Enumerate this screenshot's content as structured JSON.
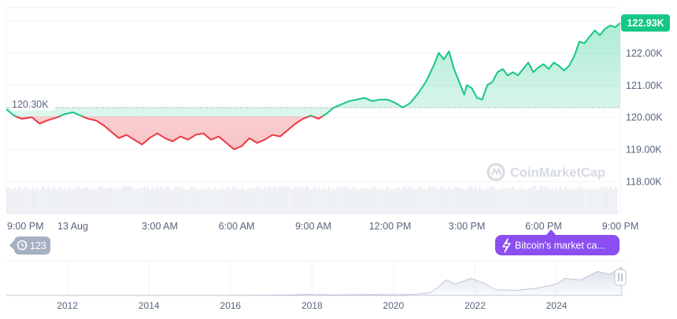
{
  "chart_data": {
    "type": "area",
    "baseline_label": "120.30K",
    "last_value_label": "122.93K",
    "y_axis": {
      "unit_suffix": "K",
      "tick_values": [
        118,
        119,
        120,
        121,
        122
      ],
      "tick_labels": [
        "118.00K",
        "119.00K",
        "120.00K",
        "121.00K",
        "122.00K"
      ],
      "range": [
        117.0,
        123.4
      ]
    },
    "x_axis": {
      "tick_labels": [
        "9:00 PM",
        "13 Aug",
        "3:00 AM",
        "6:00 AM",
        "9:00 AM",
        "12:00 PM",
        "3:00 PM",
        "6:00 PM",
        "9:00 PM"
      ],
      "tick_hours": [
        0,
        2.6,
        6,
        9,
        12,
        15,
        18,
        21,
        24
      ]
    },
    "baseline": 120.3,
    "series": [
      {
        "x_hours": [
          0,
          0.3,
          0.6,
          1.0,
          1.3,
          1.6,
          2.0,
          2.3,
          2.6,
          2.9,
          3.2,
          3.5,
          3.8,
          4.1,
          4.4,
          4.7,
          5.0,
          5.3,
          5.6,
          5.9,
          6.2,
          6.5,
          6.8,
          7.1,
          7.4,
          7.7,
          8.0,
          8.3,
          8.6,
          8.9,
          9.2,
          9.5,
          9.8,
          10.1,
          10.4,
          10.7,
          11.0,
          11.3,
          11.6,
          11.9,
          12.2,
          12.5,
          12.8,
          13.1,
          13.4,
          13.7,
          14.0,
          14.3,
          14.6,
          14.9,
          15.2,
          15.5,
          15.8,
          16.1,
          16.4,
          16.7,
          16.9,
          17.1,
          17.3,
          17.5,
          17.7,
          17.9,
          18.0,
          18.2,
          18.4,
          18.6,
          18.8,
          19.0,
          19.2,
          19.4,
          19.6,
          19.8,
          20.0,
          20.2,
          20.4,
          20.6,
          20.8,
          21.0,
          21.2,
          21.4,
          21.6,
          21.8,
          22.0,
          22.2,
          22.4,
          22.6,
          22.8,
          23.0,
          23.2,
          23.4,
          23.6,
          23.8,
          24.0
        ],
        "values": [
          120.25,
          120.05,
          119.95,
          120.0,
          119.8,
          119.9,
          120.0,
          120.1,
          120.15,
          120.05,
          119.95,
          119.9,
          119.75,
          119.55,
          119.35,
          119.45,
          119.3,
          119.15,
          119.35,
          119.5,
          119.35,
          119.25,
          119.4,
          119.3,
          119.45,
          119.5,
          119.3,
          119.4,
          119.2,
          119.0,
          119.1,
          119.35,
          119.2,
          119.3,
          119.45,
          119.4,
          119.6,
          119.8,
          119.95,
          120.05,
          119.95,
          120.1,
          120.3,
          120.4,
          120.5,
          120.55,
          120.6,
          120.5,
          120.55,
          120.55,
          120.45,
          120.3,
          120.45,
          120.75,
          121.1,
          121.6,
          122.0,
          121.8,
          122.05,
          121.5,
          121.1,
          120.7,
          121.0,
          120.9,
          120.6,
          120.55,
          121.0,
          121.1,
          121.4,
          121.5,
          121.3,
          121.4,
          121.3,
          121.5,
          121.7,
          121.4,
          121.55,
          121.65,
          121.5,
          121.7,
          121.6,
          121.45,
          121.6,
          121.9,
          122.35,
          122.3,
          122.5,
          122.7,
          122.55,
          122.75,
          122.85,
          122.8,
          122.93
        ]
      }
    ],
    "overview": {
      "x_tick_labels": [
        "2012",
        "2014",
        "2016",
        "2018",
        "2020",
        "2022",
        "2024"
      ],
      "x_tick_years": [
        2012,
        2014,
        2016,
        2018,
        2020,
        2022,
        2024
      ],
      "x_range": [
        2010.5,
        2025.7
      ],
      "years": [
        2010.5,
        2011,
        2012,
        2013,
        2014,
        2015,
        2016,
        2017,
        2017.5,
        2017.9,
        2018,
        2018.5,
        2019,
        2019.5,
        2020,
        2020.3,
        2020.6,
        2020.9,
        2021.1,
        2021.3,
        2021.5,
        2021.9,
        2022.2,
        2022.5,
        2023,
        2023.5,
        2024,
        2024.2,
        2024.6,
        2025,
        2025.3,
        2025.6
      ],
      "values": [
        0,
        0.05,
        0.1,
        0.2,
        0.3,
        0.3,
        0.4,
        1,
        2,
        4,
        3,
        2,
        2.5,
        3,
        2,
        3,
        5,
        10,
        30,
        55,
        40,
        60,
        45,
        20,
        18,
        25,
        40,
        60,
        55,
        85,
        75,
        100
      ]
    }
  },
  "badges": {
    "history_count": "123",
    "event_label": "Bitcoin's market ca..."
  },
  "watermark": "CoinMarketCap",
  "colors": {
    "up": "#16c784",
    "down": "#ea3943",
    "grid": "#eff2f5",
    "text": "#58667e",
    "badge_purple": "#8b4ef0",
    "badge_gray": "#a6b0c3"
  }
}
